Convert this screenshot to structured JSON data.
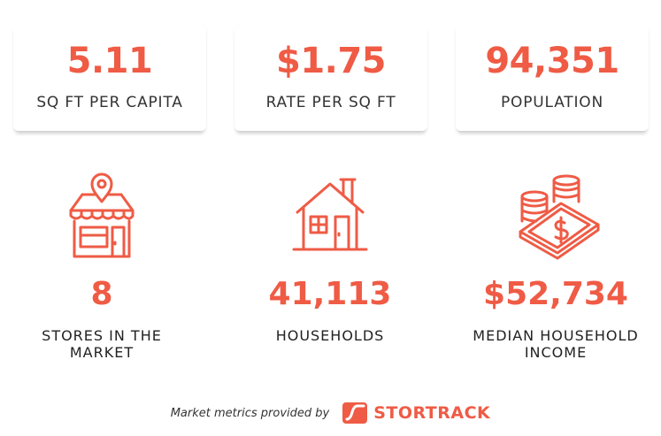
{
  "cards": [
    {
      "value": "5.11",
      "label": "SQ FT PER CAPITA"
    },
    {
      "value": "$1.75",
      "label": "RATE PER SQ FT"
    },
    {
      "value": "94,351",
      "label": "POPULATION"
    }
  ],
  "stats": [
    {
      "value": "8",
      "label": "STORES IN THE\nMARKET",
      "icon": "storefront-icon"
    },
    {
      "value": "41,113",
      "label": "HOUSEHOLDS",
      "icon": "house-icon"
    },
    {
      "value": "$52,734",
      "label": "MEDIAN HOUSEHOLD\nINCOME",
      "icon": "money-coins-icon"
    }
  ],
  "footer": {
    "credit": "Market metrics provided by",
    "brand": "STORTRACK"
  },
  "colors": {
    "accent": "#ef5b45",
    "text": "#333333"
  }
}
